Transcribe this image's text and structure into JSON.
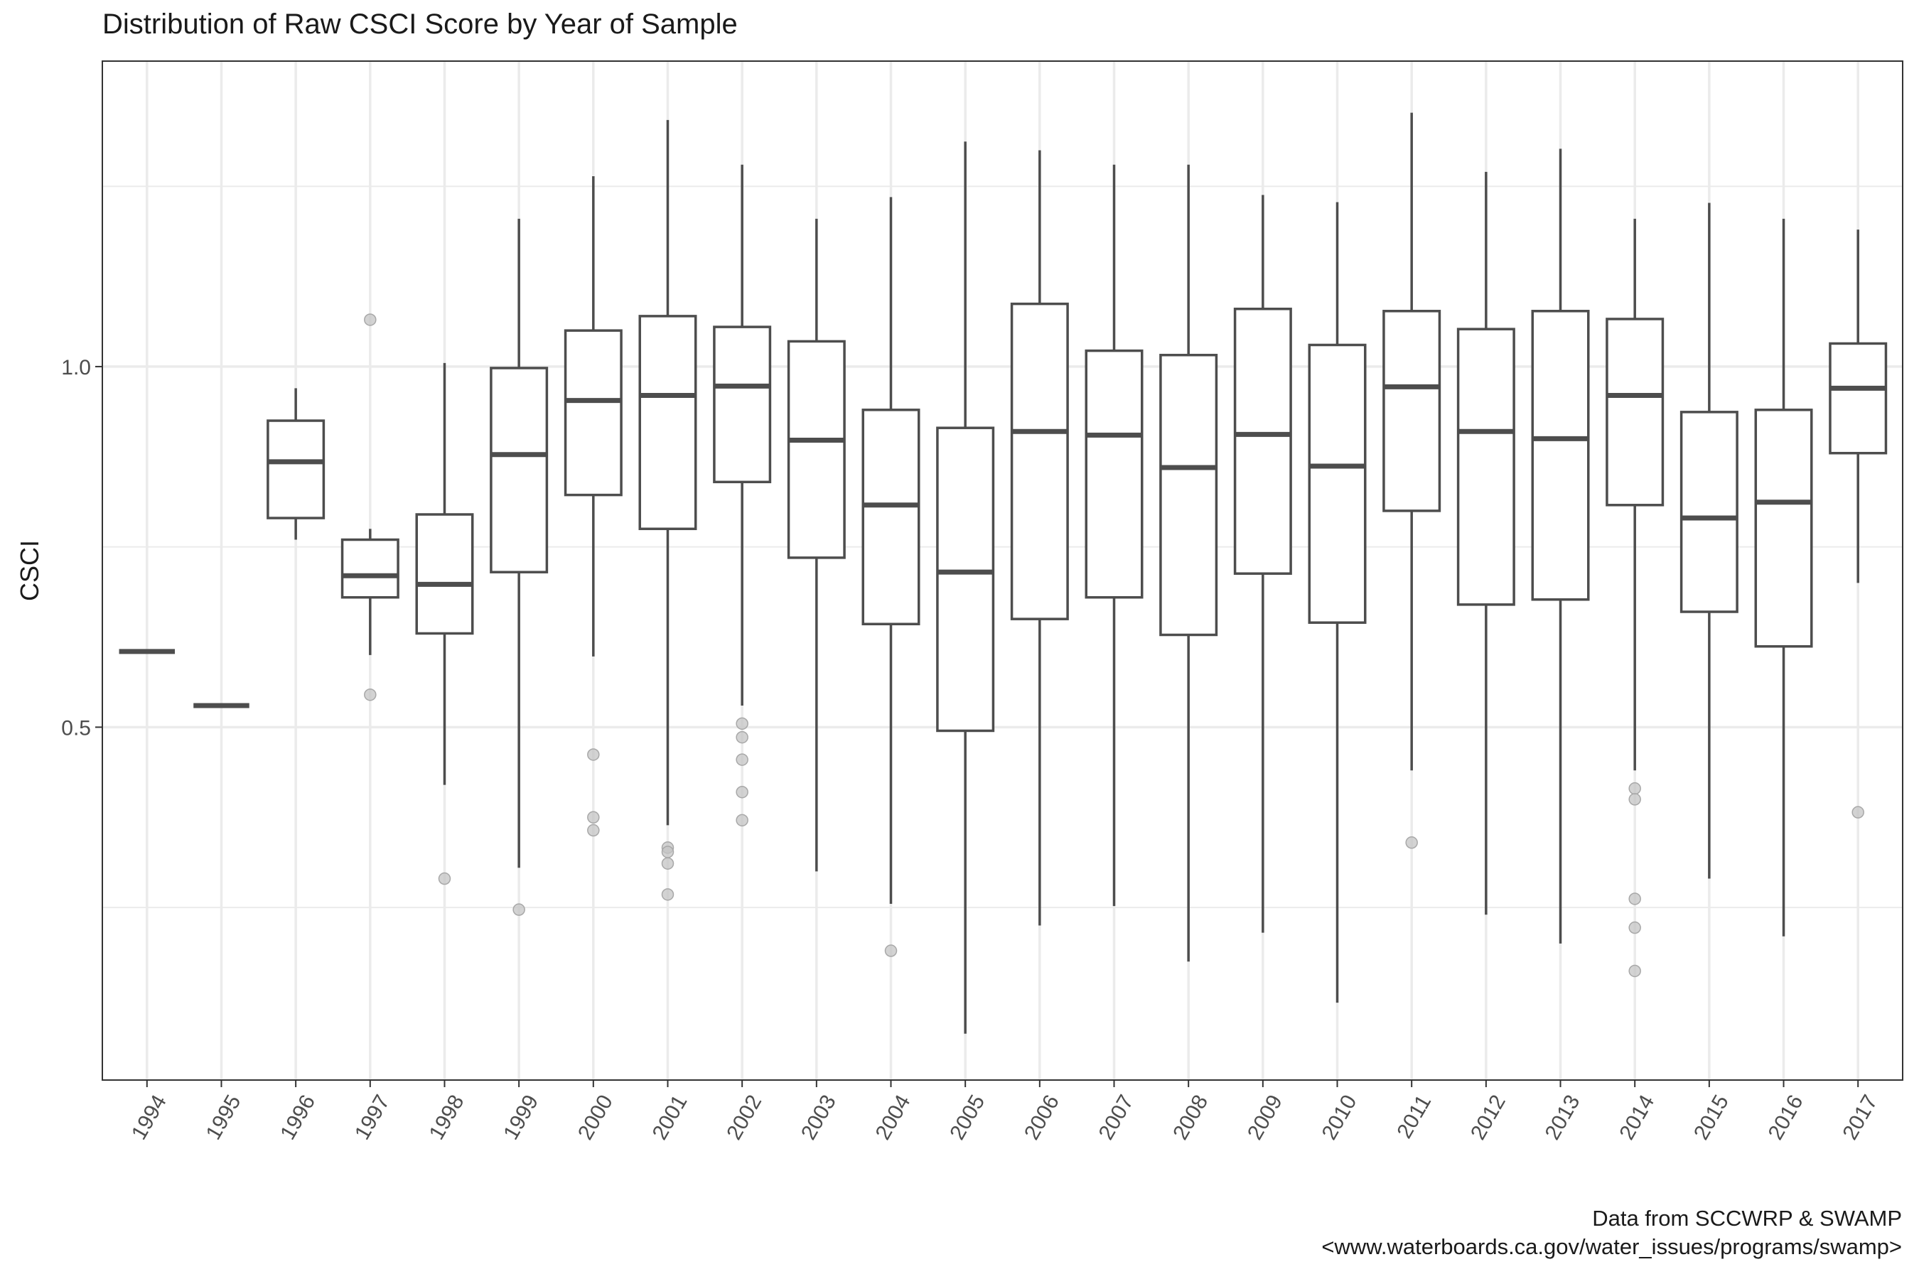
{
  "chart_data": {
    "type": "box",
    "title": "Distribution of Raw CSCI Score by Year of Sample",
    "xlabel": "",
    "ylabel": "CSCI",
    "ylim": [
      0.0107,
      1.4236
    ],
    "yticks": [
      0.5,
      1.0
    ],
    "caption": [
      "Data from SCCWRP & SWAMP",
      "<www.waterboards.ca.gov/water_issues/programs/swamp>"
    ],
    "grid": true,
    "colors": {
      "box_line": "#4d4d4d",
      "outlier": "#c4c4c4",
      "grid": "#ebebeb",
      "panel_border": "#333333"
    },
    "categories": [
      "1994",
      "1995",
      "1996",
      "1997",
      "1998",
      "1999",
      "2000",
      "2001",
      "2002",
      "2003",
      "2004",
      "2005",
      "2006",
      "2007",
      "2008",
      "2009",
      "2010",
      "2011",
      "2012",
      "2013",
      "2014",
      "2015",
      "2016",
      "2017"
    ],
    "boxes": [
      {
        "year": "1994",
        "min": 0.605,
        "q1": 0.605,
        "median": 0.605,
        "q3": 0.605,
        "max": 0.605,
        "outliers": []
      },
      {
        "year": "1995",
        "min": 0.53,
        "q1": 0.53,
        "median": 0.53,
        "q3": 0.53,
        "max": 0.53,
        "outliers": []
      },
      {
        "year": "1996",
        "min": 0.76,
        "q1": 0.79,
        "median": 0.868,
        "q3": 0.925,
        "max": 0.97,
        "outliers": []
      },
      {
        "year": "1997",
        "min": 0.6,
        "q1": 0.68,
        "median": 0.71,
        "q3": 0.76,
        "max": 0.775,
        "outliers": [
          1.065,
          0.545
        ]
      },
      {
        "year": "1998",
        "min": 0.42,
        "q1": 0.63,
        "median": 0.698,
        "q3": 0.795,
        "max": 1.005,
        "outliers": [
          0.29
        ]
      },
      {
        "year": "1999",
        "min": 0.305,
        "q1": 0.715,
        "median": 0.878,
        "q3": 0.998,
        "max": 1.205,
        "outliers": [
          0.247
        ]
      },
      {
        "year": "2000",
        "min": 0.598,
        "q1": 0.822,
        "median": 0.953,
        "q3": 1.05,
        "max": 1.264,
        "outliers": [
          0.462,
          0.375,
          0.357
        ]
      },
      {
        "year": "2001",
        "min": 0.364,
        "q1": 0.775,
        "median": 0.96,
        "q3": 1.07,
        "max": 1.342,
        "outliers": [
          0.333,
          0.327,
          0.311,
          0.268
        ]
      },
      {
        "year": "2002",
        "min": 0.53,
        "q1": 0.84,
        "median": 0.973,
        "q3": 1.055,
        "max": 1.28,
        "outliers": [
          0.505,
          0.486,
          0.455,
          0.41,
          0.371
        ]
      },
      {
        "year": "2003",
        "min": 0.3,
        "q1": 0.735,
        "median": 0.898,
        "q3": 1.035,
        "max": 1.205,
        "outliers": []
      },
      {
        "year": "2004",
        "min": 0.255,
        "q1": 0.643,
        "median": 0.808,
        "q3": 0.94,
        "max": 1.235,
        "outliers": [
          0.19
        ]
      },
      {
        "year": "2005",
        "min": 0.075,
        "q1": 0.495,
        "median": 0.715,
        "q3": 0.915,
        "max": 1.312,
        "outliers": []
      },
      {
        "year": "2006",
        "min": 0.225,
        "q1": 0.65,
        "median": 0.91,
        "q3": 1.087,
        "max": 1.3,
        "outliers": []
      },
      {
        "year": "2007",
        "min": 0.252,
        "q1": 0.68,
        "median": 0.905,
        "q3": 1.022,
        "max": 1.28,
        "outliers": []
      },
      {
        "year": "2008",
        "min": 0.175,
        "q1": 0.628,
        "median": 0.86,
        "q3": 1.016,
        "max": 1.28,
        "outliers": []
      },
      {
        "year": "2009",
        "min": 0.215,
        "q1": 0.713,
        "median": 0.906,
        "q3": 1.08,
        "max": 1.238,
        "outliers": []
      },
      {
        "year": "2010",
        "min": 0.118,
        "q1": 0.645,
        "median": 0.862,
        "q3": 1.03,
        "max": 1.228,
        "outliers": []
      },
      {
        "year": "2011",
        "min": 0.44,
        "q1": 0.8,
        "median": 0.972,
        "q3": 1.077,
        "max": 1.352,
        "outliers": [
          0.34
        ]
      },
      {
        "year": "2012",
        "min": 0.24,
        "q1": 0.67,
        "median": 0.91,
        "q3": 1.052,
        "max": 1.27,
        "outliers": []
      },
      {
        "year": "2013",
        "min": 0.2,
        "q1": 0.677,
        "median": 0.9,
        "q3": 1.077,
        "max": 1.302,
        "outliers": []
      },
      {
        "year": "2014",
        "min": 0.44,
        "q1": 0.808,
        "median": 0.96,
        "q3": 1.066,
        "max": 1.205,
        "outliers": [
          0.415,
          0.4,
          0.262,
          0.222,
          0.162
        ]
      },
      {
        "year": "2015",
        "min": 0.29,
        "q1": 0.66,
        "median": 0.79,
        "q3": 0.937,
        "max": 1.227,
        "outliers": []
      },
      {
        "year": "2016",
        "min": 0.21,
        "q1": 0.612,
        "median": 0.812,
        "q3": 0.94,
        "max": 1.205,
        "outliers": []
      },
      {
        "year": "2017",
        "min": 0.7,
        "q1": 0.88,
        "median": 0.97,
        "q3": 1.032,
        "max": 1.19,
        "outliers": [
          0.382
        ]
      }
    ]
  }
}
